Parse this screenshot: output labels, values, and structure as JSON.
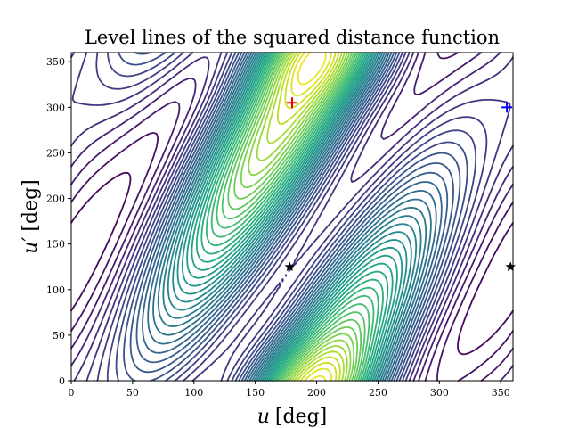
{
  "chart_data": {
    "type": "contour",
    "title": "Level lines of the squared distance function",
    "xlabel": {
      "symbol": "u",
      "unit": "[deg]"
    },
    "ylabel": {
      "symbol": "u′",
      "unit": "[deg]"
    },
    "xlim": [
      0,
      360
    ],
    "ylim": [
      0,
      360
    ],
    "xticks": [
      "0",
      "50",
      "100",
      "150",
      "200",
      "250",
      "300",
      "350"
    ],
    "yticks": [
      "0",
      "50",
      "100",
      "150",
      "200",
      "250",
      "300",
      "350"
    ],
    "colormap": "viridis",
    "grid": false,
    "maxima": [
      {
        "u": 180,
        "v": 305
      },
      {
        "u": 195,
        "v": 0
      }
    ],
    "saddle_points": [
      {
        "u": 178,
        "v": 125
      }
    ],
    "markers": [
      {
        "kind": "plus",
        "u": 180,
        "v": 305,
        "color": "#ff0000"
      },
      {
        "kind": "plus",
        "u": 355,
        "v": 300,
        "color": "#0000ff"
      },
      {
        "kind": "star",
        "u": 178,
        "v": 125,
        "color": "#000000"
      },
      {
        "kind": "star",
        "u": 358,
        "v": 125,
        "color": "#000000"
      }
    ]
  }
}
